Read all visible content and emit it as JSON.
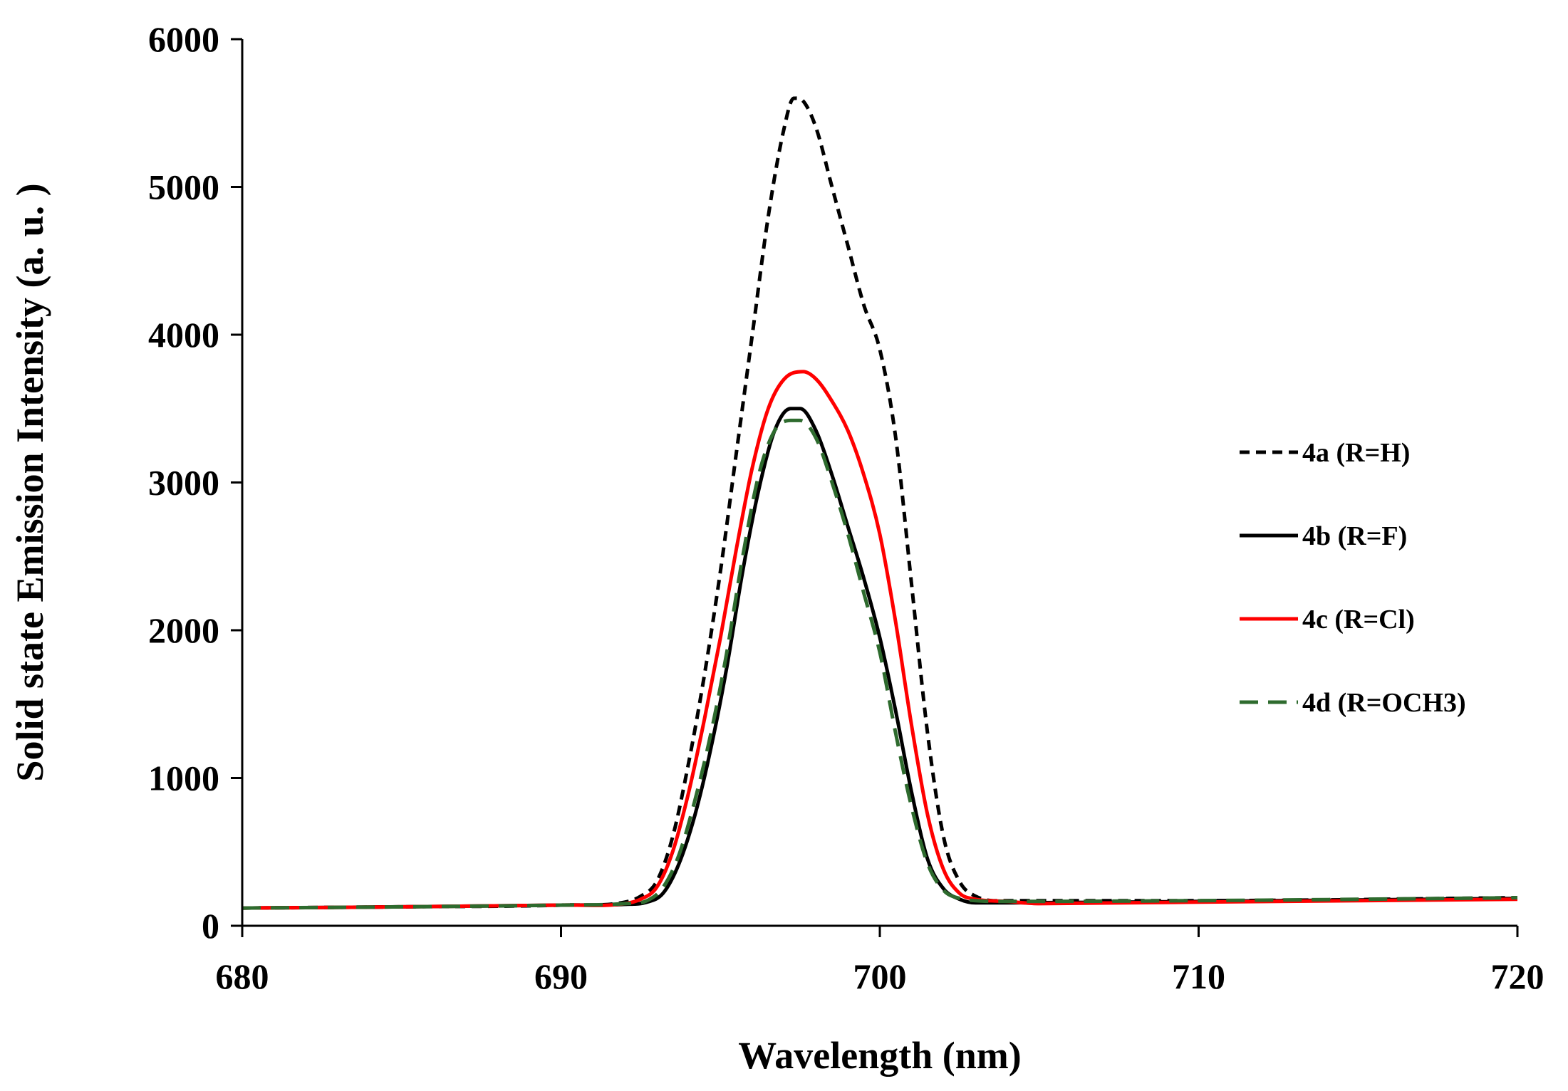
{
  "chart_data": {
    "type": "line",
    "title": "",
    "xlabel": "Wavelength (nm)",
    "ylabel": "Solid state Emission Intensity (a. u. )",
    "xlim": [
      680,
      720
    ],
    "ylim": [
      0,
      6000
    ],
    "xticks": [
      680,
      690,
      700,
      710,
      720
    ],
    "yticks": [
      0,
      1000,
      2000,
      3000,
      4000,
      5000,
      6000
    ],
    "xtick_labels": [
      "680",
      "690",
      "700",
      "710",
      "720"
    ],
    "ytick_labels": [
      "0",
      "1000",
      "2000",
      "3000",
      "4000",
      "5000",
      "6000"
    ],
    "grid": false,
    "legend_position": "right",
    "series": [
      {
        "name": "4a (R=H)",
        "color": "#000000",
        "dash": "dashed",
        "points": [
          [
            680,
            120
          ],
          [
            685,
            128
          ],
          [
            690,
            140
          ],
          [
            692,
            160
          ],
          [
            692.5,
            200
          ],
          [
            693,
            300
          ],
          [
            693.5,
            600
          ],
          [
            694,
            1100
          ],
          [
            694.5,
            1700
          ],
          [
            695,
            2400
          ],
          [
            695.5,
            3200
          ],
          [
            696,
            4000
          ],
          [
            696.5,
            4800
          ],
          [
            697,
            5400
          ],
          [
            697.3,
            5600
          ],
          [
            697.6,
            5580
          ],
          [
            698,
            5400
          ],
          [
            698.5,
            5000
          ],
          [
            699,
            4600
          ],
          [
            699.5,
            4200
          ],
          [
            700,
            3900
          ],
          [
            700.5,
            3300
          ],
          [
            701,
            2300
          ],
          [
            701.5,
            1300
          ],
          [
            702,
            600
          ],
          [
            702.5,
            300
          ],
          [
            703,
            200
          ],
          [
            704,
            170
          ],
          [
            710,
            170
          ],
          [
            720,
            190
          ]
        ]
      },
      {
        "name": "4b (R=F)",
        "color": "#000000",
        "dash": "solid",
        "points": [
          [
            680,
            120
          ],
          [
            685,
            128
          ],
          [
            690,
            140
          ],
          [
            692,
            145
          ],
          [
            692.7,
            160
          ],
          [
            693.2,
            220
          ],
          [
            693.7,
            420
          ],
          [
            694.2,
            750
          ],
          [
            694.7,
            1200
          ],
          [
            695.2,
            1750
          ],
          [
            695.7,
            2400
          ],
          [
            696.2,
            2950
          ],
          [
            696.7,
            3350
          ],
          [
            697.2,
            3500
          ],
          [
            697.5,
            3500
          ],
          [
            698,
            3350
          ],
          [
            698.5,
            3050
          ],
          [
            699,
            2700
          ],
          [
            699.5,
            2350
          ],
          [
            700,
            1950
          ],
          [
            700.5,
            1450
          ],
          [
            701,
            900
          ],
          [
            701.5,
            450
          ],
          [
            702,
            250
          ],
          [
            702.5,
            180
          ],
          [
            703,
            155
          ],
          [
            704,
            155
          ],
          [
            710,
            165
          ],
          [
            720,
            185
          ]
        ]
      },
      {
        "name": "4c (R=Cl)",
        "color": "#ff0000",
        "dash": "solid",
        "points": [
          [
            680,
            120
          ],
          [
            685,
            128
          ],
          [
            690,
            140
          ],
          [
            692,
            150
          ],
          [
            692.5,
            180
          ],
          [
            693,
            260
          ],
          [
            693.5,
            500
          ],
          [
            694,
            900
          ],
          [
            694.5,
            1400
          ],
          [
            695,
            1950
          ],
          [
            695.5,
            2550
          ],
          [
            696,
            3100
          ],
          [
            696.5,
            3500
          ],
          [
            697,
            3700
          ],
          [
            697.6,
            3750
          ],
          [
            698,
            3700
          ],
          [
            698.5,
            3550
          ],
          [
            699,
            3350
          ],
          [
            699.5,
            3050
          ],
          [
            700,
            2650
          ],
          [
            700.5,
            2050
          ],
          [
            701,
            1350
          ],
          [
            701.5,
            750
          ],
          [
            702,
            380
          ],
          [
            702.5,
            220
          ],
          [
            703,
            180
          ],
          [
            704,
            165
          ],
          [
            705,
            150
          ],
          [
            710,
            160
          ],
          [
            720,
            180
          ]
        ]
      },
      {
        "name": "4d (R=OCH3)",
        "color": "#2e6b2e",
        "dash": "longdash",
        "points": [
          [
            680,
            120
          ],
          [
            685,
            128
          ],
          [
            690,
            140
          ],
          [
            692,
            150
          ],
          [
            692.7,
            170
          ],
          [
            693.2,
            260
          ],
          [
            693.7,
            480
          ],
          [
            694.2,
            850
          ],
          [
            694.7,
            1300
          ],
          [
            695.2,
            1850
          ],
          [
            695.7,
            2500
          ],
          [
            696.2,
            3050
          ],
          [
            696.7,
            3350
          ],
          [
            697.2,
            3420
          ],
          [
            697.5,
            3420
          ],
          [
            698,
            3300
          ],
          [
            698.5,
            3000
          ],
          [
            699,
            2650
          ],
          [
            699.5,
            2250
          ],
          [
            700,
            1850
          ],
          [
            700.5,
            1300
          ],
          [
            701,
            800
          ],
          [
            701.5,
            420
          ],
          [
            702,
            240
          ],
          [
            702.5,
            185
          ],
          [
            703,
            170
          ],
          [
            704,
            165
          ],
          [
            710,
            170
          ],
          [
            720,
            190
          ]
        ]
      }
    ]
  }
}
